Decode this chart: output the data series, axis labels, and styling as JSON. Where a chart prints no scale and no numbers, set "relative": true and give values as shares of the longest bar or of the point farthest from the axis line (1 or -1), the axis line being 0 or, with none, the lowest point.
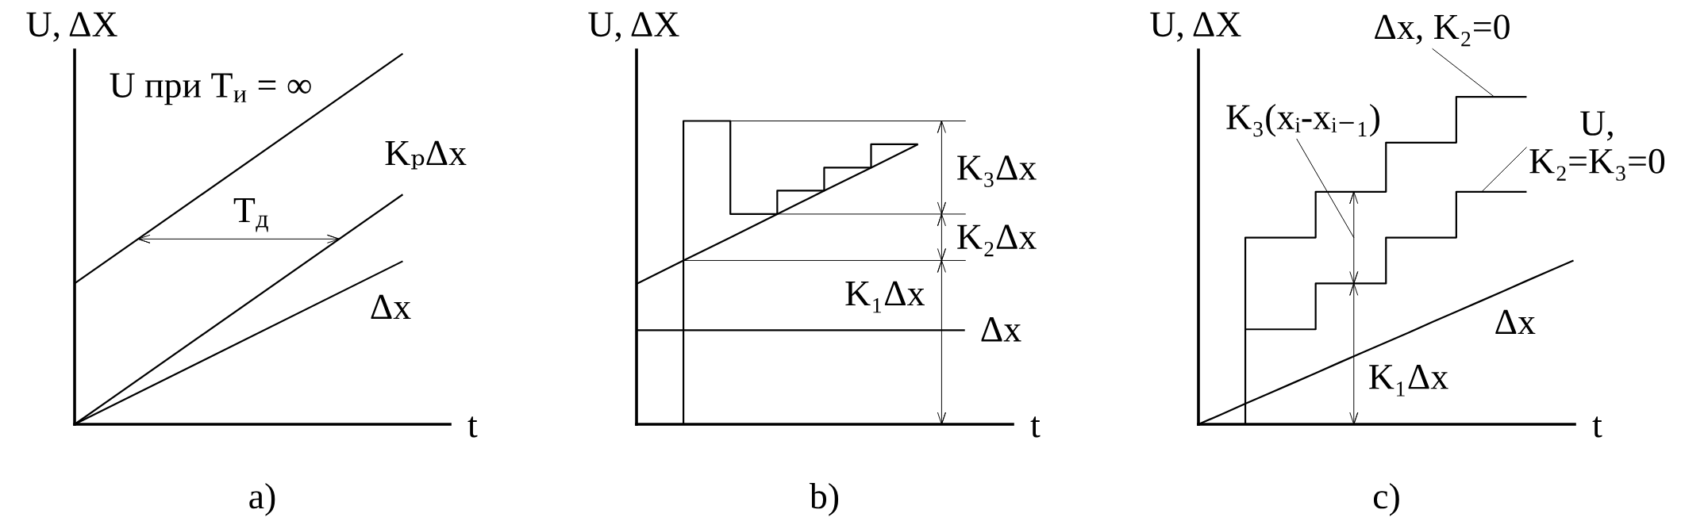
{
  "chart_data": [
    {
      "type": "line",
      "title": "a)",
      "xlabel": "t",
      "ylabel": "U, ΔX",
      "relative": true,
      "categories": [
        null,
        null
      ],
      "series": [
        {
          "name": "U при T$_{и}$ = ∞",
          "color": "#000000",
          "values": [
            0.38,
            1
          ]
        },
        {
          "name": "KₚΔx",
          "color": "#000000",
          "values": [
            0,
            0.62
          ]
        },
        {
          "name": "Δx",
          "color": "#000000",
          "values": [
            0,
            0.44
          ]
        }
      ],
      "annotations": [
        "T$_{д}$"
      ]
    },
    {
      "type": "line",
      "title": "b)",
      "xlabel": "t",
      "ylabel": "U, ΔX",
      "relative": true,
      "categories": [
        null,
        null,
        null,
        null,
        null,
        null,
        null,
        null
      ],
      "series": [
        {
          "name": "Δx",
          "color": "#000000",
          "values": [
            0.31,
            0.31,
            0.31,
            0.31,
            0.31,
            0.31,
            0.31,
            0.31
          ]
        },
        {
          "color": "#000000",
          "values": [
            0.463,
            0.54,
            0.616,
            0.693,
            0.77,
            0.846,
            0.923,
            null
          ]
        },
        {
          "type": "step",
          "color": "#000000",
          "values": [
            0,
            1,
            0.693,
            0.77,
            0.846,
            0.923,
            0.923,
            null
          ]
        }
      ],
      "ref_lines": [
        {
          "axis": "y",
          "value": 0.54
        },
        {
          "axis": "y",
          "value": 0.693
        },
        {
          "axis": "y",
          "value": 1
        }
      ],
      "annotations": [
        "K₁Δx",
        "K₂Δx",
        "K₃Δx"
      ]
    },
    {
      "type": "step",
      "title": "c)",
      "xlabel": "t",
      "ylabel": "U, ΔX",
      "relative": true,
      "categories": [
        null,
        null,
        null,
        null,
        null,
        null,
        null,
        null,
        null,
        null,
        null,
        null,
        null,
        null,
        null,
        null,
        null
      ],
      "series": [
        {
          "name": "Δx, K₂=0",
          "color": "#000000",
          "values": [
            null,
            0,
            0.57,
            0.57,
            0.57,
            0.71,
            0.71,
            0.71,
            0.86,
            0.86,
            0.86,
            1,
            1,
            1,
            1,
            null,
            null
          ]
        },
        {
          "name": "U,\nK₂=K₃=0",
          "color": "#000000",
          "values": [
            null,
            null,
            0.29,
            0.29,
            0.29,
            0.43,
            0.43,
            0.43,
            0.57,
            0.57,
            0.57,
            0.71,
            0.71,
            0.71,
            0.71,
            null,
            null
          ]
        },
        {
          "type": "line",
          "name": "Δx",
          "color": "#000000",
          "values": [
            0,
            0.031,
            0.063,
            0.094,
            0.125,
            0.156,
            0.188,
            0.219,
            0.25,
            0.281,
            0.313,
            0.344,
            0.375,
            0.406,
            0.438,
            0.469,
            0.5
          ]
        }
      ],
      "annotations": [
        "K₁Δx",
        "K₃(xᵢ-xᵢ₋₁)"
      ]
    }
  ]
}
